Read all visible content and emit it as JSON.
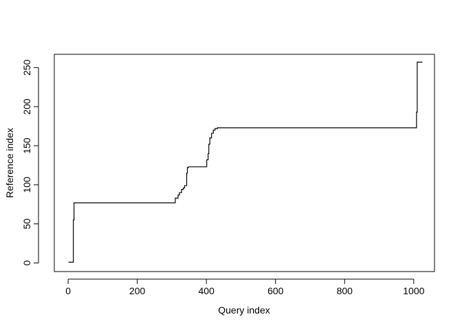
{
  "chart_data": {
    "type": "line",
    "step": true,
    "xlabel": "Query index",
    "ylabel": "Reference index",
    "xlim": [
      -40,
      1060
    ],
    "ylim": [
      -11,
      267
    ],
    "xticks": [
      0,
      200,
      400,
      600,
      800,
      1000
    ],
    "yticks": [
      0,
      50,
      100,
      150,
      200,
      250
    ],
    "grid": false,
    "series": [
      {
        "color": "#000000",
        "x": [
          1,
          12,
          15,
          17,
          20,
          305,
          310,
          318,
          322,
          328,
          333,
          337,
          343,
          345,
          348,
          350,
          398,
          401,
          405,
          407,
          410,
          415,
          420,
          425,
          432,
          435,
          1005,
          1008,
          1010,
          1025
        ],
        "y": [
          1,
          1,
          55,
          77,
          77,
          77,
          83,
          87,
          90,
          94,
          96,
          99,
          115,
          122,
          123,
          123,
          123,
          132,
          140,
          152,
          160,
          166,
          170,
          172,
          173,
          173,
          173,
          193,
          257,
          257
        ]
      }
    ]
  }
}
